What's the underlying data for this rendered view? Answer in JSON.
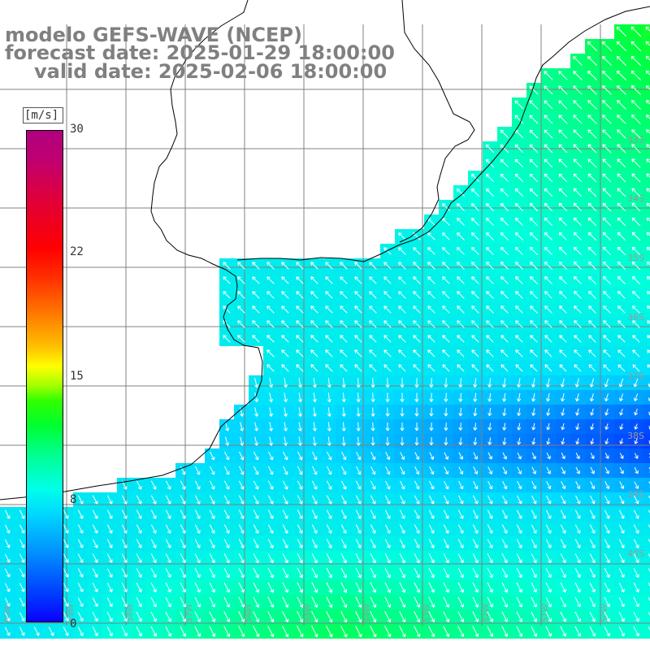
{
  "title": {
    "line1": "modelo GEFS-WAVE (NCEP)",
    "line2": "forecast date: 2025-01-29 18:00:00",
    "line3": "valid date: 2025-02-06 18:00:00"
  },
  "legend": {
    "unit": "[m/s]",
    "ticks": [
      {
        "label": "30",
        "value": 30
      },
      {
        "label": "22",
        "value": 22
      },
      {
        "label": "15",
        "value": 15
      },
      {
        "label": "8",
        "value": 8
      },
      {
        "label": "0",
        "value": 0
      }
    ],
    "colormap": "blue-cyan-green-yellow-red-magenta"
  },
  "map": {
    "lat_labels": [
      "33S",
      "34S",
      "35S",
      "36S",
      "37S",
      "38S",
      "39S",
      "40S"
    ],
    "lon_labels": [
      "60W",
      "59W",
      "58W",
      "57W",
      "56W",
      "55W",
      "54W",
      "53W",
      "52W",
      "51W",
      "50W"
    ],
    "colors": {
      "land": "#ffffff",
      "coast": "#000000",
      "grid": "#808080",
      "arrow": "#ffffff",
      "strong_wind": "#00ff40",
      "weak_wind": "#0010ff"
    },
    "region": "Rio de la Plata / Uruguay / southern Brazil coast"
  }
}
